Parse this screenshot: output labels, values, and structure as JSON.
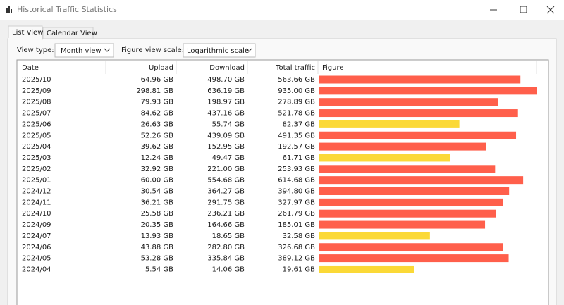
{
  "window": {
    "title": "Historical Traffic Statistics"
  },
  "tabs": [
    "List View",
    "Calendar View"
  ],
  "controls": {
    "view_type_label": "View type:",
    "view_type": "Month view",
    "scale_label": "Figure view scale:",
    "scale": "Logarithmic scale"
  },
  "table": {
    "columns": [
      "Date",
      "Upload",
      "Download",
      "Total traffic",
      "Figure"
    ],
    "figure_scale": "log",
    "rows": [
      {
        "date": "2025/10",
        "upload": "64.96 GB",
        "download": "498.70 GB",
        "total": {
          "value": 563.66,
          "label": "563.66 GB"
        },
        "bar_color": "#ff5f4b"
      },
      {
        "date": "2025/09",
        "upload": "298.81 GB",
        "download": "636.19 GB",
        "total": {
          "value": 935.0,
          "label": "935.00 GB"
        },
        "bar_color": "#ff5f4b"
      },
      {
        "date": "2025/08",
        "upload": "79.93 GB",
        "download": "198.97 GB",
        "total": {
          "value": 278.89,
          "label": "278.89 GB"
        },
        "bar_color": "#ff5f4b"
      },
      {
        "date": "2025/07",
        "upload": "84.62 GB",
        "download": "437.16 GB",
        "total": {
          "value": 521.78,
          "label": "521.78 GB"
        },
        "bar_color": "#ff5f4b"
      },
      {
        "date": "2025/06",
        "upload": "26.63 GB",
        "download": "55.74 GB",
        "total": {
          "value": 82.37,
          "label": "82.37 GB"
        },
        "bar_color": "#fbd937"
      },
      {
        "date": "2025/05",
        "upload": "52.26 GB",
        "download": "439.09 GB",
        "total": {
          "value": 491.35,
          "label": "491.35 GB"
        },
        "bar_color": "#ff5f4b"
      },
      {
        "date": "2025/04",
        "upload": "39.62 GB",
        "download": "152.95 GB",
        "total": {
          "value": 192.57,
          "label": "192.57 GB"
        },
        "bar_color": "#ff5f4b"
      },
      {
        "date": "2025/03",
        "upload": "12.24 GB",
        "download": "49.47 GB",
        "total": {
          "value": 61.71,
          "label": "61.71 GB"
        },
        "bar_color": "#fbd937"
      },
      {
        "date": "2025/02",
        "upload": "32.92 GB",
        "download": "221.00 GB",
        "total": {
          "value": 253.93,
          "label": "253.93 GB"
        },
        "bar_color": "#ff5f4b"
      },
      {
        "date": "2025/01",
        "upload": "60.00 GB",
        "download": "554.68 GB",
        "total": {
          "value": 614.68,
          "label": "614.68 GB"
        },
        "bar_color": "#ff5f4b"
      },
      {
        "date": "2024/12",
        "upload": "30.54 GB",
        "download": "364.27 GB",
        "total": {
          "value": 394.8,
          "label": "394.80 GB"
        },
        "bar_color": "#ff5f4b"
      },
      {
        "date": "2024/11",
        "upload": "36.21 GB",
        "download": "291.75 GB",
        "total": {
          "value": 327.97,
          "label": "327.97 GB"
        },
        "bar_color": "#ff5f4b"
      },
      {
        "date": "2024/10",
        "upload": "25.58 GB",
        "download": "236.21 GB",
        "total": {
          "value": 261.79,
          "label": "261.79 GB"
        },
        "bar_color": "#ff5f4b"
      },
      {
        "date": "2024/09",
        "upload": "20.35 GB",
        "download": "164.66 GB",
        "total": {
          "value": 185.01,
          "label": "185.01 GB"
        },
        "bar_color": "#ff5f4b"
      },
      {
        "date": "2024/07",
        "upload": "13.93 GB",
        "download": "18.65 GB",
        "total": {
          "value": 32.58,
          "label": "32.58 GB"
        },
        "bar_color": "#fbd937"
      },
      {
        "date": "2024/06",
        "upload": "43.88 GB",
        "download": "282.80 GB",
        "total": {
          "value": 326.68,
          "label": "326.68 GB"
        },
        "bar_color": "#ff5f4b"
      },
      {
        "date": "2024/05",
        "upload": "53.28 GB",
        "download": "335.84 GB",
        "total": {
          "value": 389.12,
          "label": "389.12 GB"
        },
        "bar_color": "#ff5f4b"
      },
      {
        "date": "2024/04",
        "upload": "5.54 GB",
        "download": "14.06 GB",
        "total": {
          "value": 19.61,
          "label": "19.61 GB"
        },
        "bar_color": "#fbd937"
      }
    ]
  }
}
